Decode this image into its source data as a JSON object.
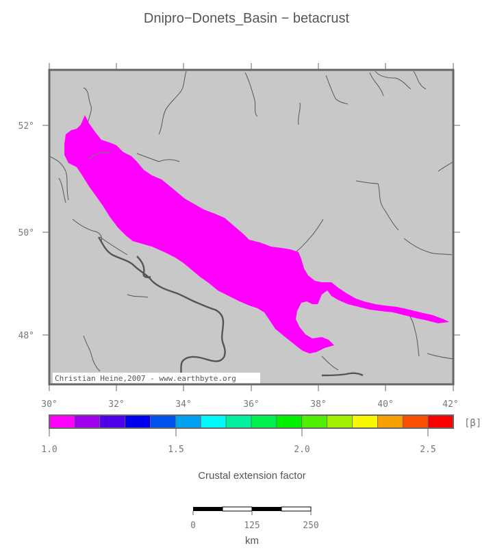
{
  "title": "Dnipro−Donets_Basin − betacrust",
  "map": {
    "lon_ticks": [
      "30°",
      "32°",
      "34°",
      "36°",
      "38°",
      "40°",
      "42°"
    ],
    "lat_ticks": [
      "52°",
      "50°",
      "48°"
    ],
    "credit": "Christian Heine,2007 - www.earthbyte.org",
    "background_color": "#c8c8c8",
    "basin_color": "#ff00ff"
  },
  "colorbar": {
    "unit_label": "[β]",
    "tick_labels": [
      "1.0",
      "1.5",
      "2.0",
      "2.5"
    ],
    "title": "Crustal extension factor",
    "colors": [
      "#ff00ff",
      "#a000f0",
      "#5000e8",
      "#0000f0",
      "#0050f0",
      "#00a0f0",
      "#00f8f8",
      "#00f0a0",
      "#00f050",
      "#00f000",
      "#50f000",
      "#a0f000",
      "#f8f800",
      "#f8a000",
      "#f85000",
      "#f80000"
    ]
  },
  "scalebar": {
    "labels": [
      "0",
      "125",
      "250"
    ],
    "unit": "km"
  }
}
